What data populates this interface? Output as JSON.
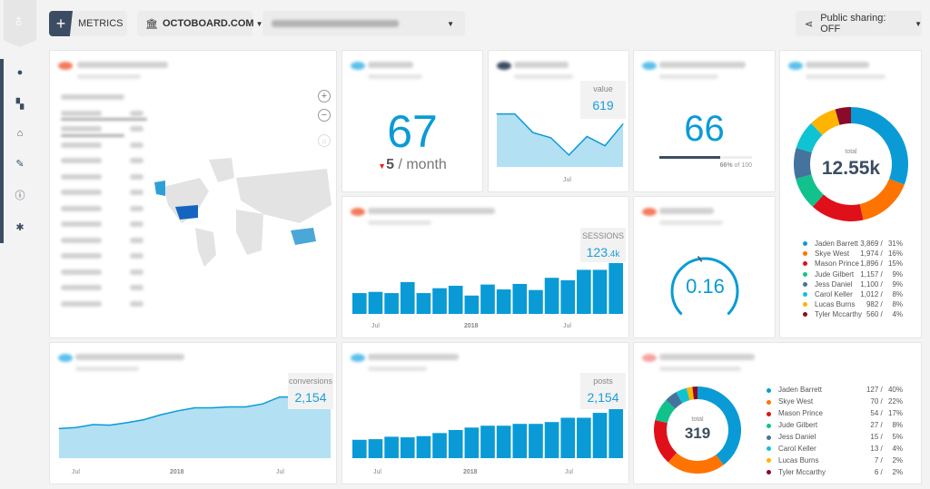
{
  "toolbar": {
    "metrics_label": "METRICS",
    "org_label": "OCTOBOARD.COM",
    "sharing_label": "Public sharing: OFF"
  },
  "sidebar": {
    "icons": [
      "user-icon",
      "dashboard-icon",
      "bank-icon",
      "plugin-icon",
      "info-icon",
      "bug-icon"
    ]
  },
  "colors": {
    "accent": "#0a9bd6",
    "dark": "#3c4d63",
    "down": "#e0262b"
  },
  "kpi_67": {
    "value": "67",
    "delta": "5",
    "delta_unit": "/ month",
    "direction": "down"
  },
  "line_value": {
    "label": "value",
    "value": "619",
    "xtick": "Jul",
    "series": [
      80,
      80,
      52,
      44,
      18,
      46,
      32,
      65
    ]
  },
  "kpi_66": {
    "value": "66",
    "progress_pct": 66,
    "progress_label_pct": "66%",
    "progress_label_rest": "of 100"
  },
  "gauge": {
    "value": "0.16",
    "fraction": 0.16
  },
  "sessions": {
    "label": "SESSIONS",
    "value_main": "123",
    "value_suffix": ".4k",
    "xticks": [
      "Jul",
      "2018",
      "Jul"
    ],
    "values": [
      68,
      72,
      68,
      104,
      68,
      84,
      92,
      60,
      96,
      80,
      98,
      78,
      118,
      110,
      144,
      144,
      166
    ]
  },
  "conversions": {
    "label": "conversions",
    "value": "2,154",
    "xticks": [
      "Jul",
      "2018",
      "Jul"
    ],
    "series": [
      60,
      62,
      68,
      67,
      72,
      78,
      88,
      96,
      102,
      102,
      104,
      104,
      110,
      124,
      124,
      138,
      152
    ]
  },
  "posts": {
    "label": "posts",
    "value": "2,154",
    "xticks": [
      "Jul",
      "2018",
      "Jul"
    ],
    "values": [
      60,
      62,
      70,
      68,
      72,
      82,
      92,
      100,
      106,
      106,
      112,
      112,
      118,
      132,
      132,
      148,
      166
    ]
  },
  "top_authors": {
    "total_label": "total",
    "total": "12.55k",
    "items": [
      {
        "name": "Jaden Barrett",
        "value": "3,869",
        "pct": "31%",
        "n": 3869,
        "color": "#0a9bd6"
      },
      {
        "name": "Skye West",
        "value": "1,974",
        "pct": "16%",
        "n": 1974,
        "color": "#ff7300"
      },
      {
        "name": "Mason Prince",
        "value": "1,896",
        "pct": "15%",
        "n": 1896,
        "color": "#e0101b"
      },
      {
        "name": "Jude Gilbert",
        "value": "1,157",
        "pct": "9%",
        "n": 1157,
        "color": "#11c28c"
      },
      {
        "name": "Jess Daniel",
        "value": "1,100",
        "pct": "9%",
        "n": 1100,
        "color": "#44749e"
      },
      {
        "name": "Carol Keller",
        "value": "1,012",
        "pct": "8%",
        "n": 1012,
        "color": "#0fc4d2"
      },
      {
        "name": "Lucas Burns",
        "value": "982",
        "pct": "8%",
        "n": 982,
        "color": "#ffb400"
      },
      {
        "name": "Tyler Mccarthy",
        "value": "560",
        "pct": "4%",
        "n": 560,
        "color": "#8b0a2a"
      }
    ]
  },
  "posts_authors": {
    "total_label": "total",
    "total": "319",
    "items": [
      {
        "name": "Jaden Barrett",
        "value": "127",
        "pct": "40%",
        "n": 127,
        "color": "#0a9bd6"
      },
      {
        "name": "Skye West",
        "value": "70",
        "pct": "22%",
        "n": 70,
        "color": "#ff7300"
      },
      {
        "name": "Mason Prince",
        "value": "54",
        "pct": "17%",
        "n": 54,
        "color": "#e0101b"
      },
      {
        "name": "Jude Gilbert",
        "value": "27",
        "pct": "8%",
        "n": 27,
        "color": "#11c28c"
      },
      {
        "name": "Jess Daniel",
        "value": "15",
        "pct": "5%",
        "n": 15,
        "color": "#44749e"
      },
      {
        "name": "Carol Keller",
        "value": "13",
        "pct": "4%",
        "n": 13,
        "color": "#0fc4d2"
      },
      {
        "name": "Lucas Burns",
        "value": "7",
        "pct": "2%",
        "n": 7,
        "color": "#ffb400"
      },
      {
        "name": "Tyler Mccarthy",
        "value": "6",
        "pct": "2%",
        "n": 6,
        "color": "#8b0a2a"
      }
    ]
  },
  "map": {
    "zoom_in": "+",
    "zoom_out": "−",
    "home": "⌂"
  }
}
